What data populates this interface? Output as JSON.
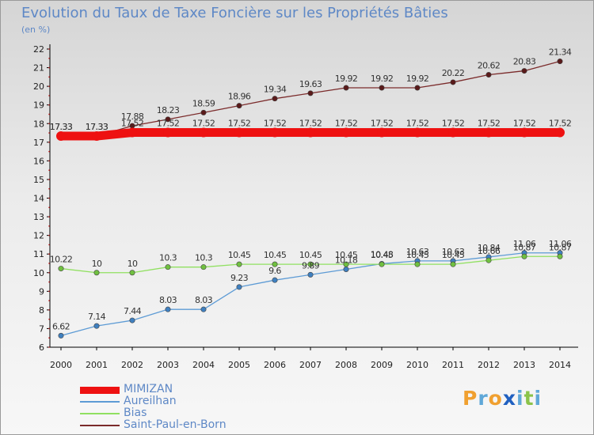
{
  "title": "Evolution du Taux de Taxe Foncière sur les Propriétés Bâties",
  "unit_label": "(en %)",
  "logo": {
    "letters": [
      "P",
      "r",
      "o",
      "x",
      "i",
      "t",
      "i"
    ],
    "colors": [
      "#f0a030",
      "#5fa8d8",
      "#f0a030",
      "#2060c0",
      "#5fa8d8",
      "#8bc34a",
      "#5fa8d8"
    ]
  },
  "chart_data": {
    "type": "line",
    "title": "Evolution du Taux de Taxe Foncière sur les Propriétés Bâties",
    "xlabel": "",
    "ylabel": "(en %)",
    "x": [
      "2000",
      "2001",
      "2002",
      "2003",
      "2004",
      "2005",
      "2006",
      "2007",
      "2008",
      "2009",
      "2010",
      "2011",
      "2012",
      "2013",
      "2014"
    ],
    "ylim": [
      6,
      22
    ],
    "yticks": [
      6,
      7,
      8,
      9,
      10,
      11,
      12,
      13,
      14,
      15,
      16,
      17,
      18,
      19,
      20,
      21,
      22
    ],
    "grid": false,
    "legend_position": "bottom-left",
    "series": [
      {
        "name": "Saint-Paul-en-Born",
        "color": "#7b2b2b",
        "marker": "#5a1a1a",
        "values": [
          17.33,
          17.33,
          17.88,
          18.23,
          18.59,
          18.96,
          19.34,
          19.63,
          19.92,
          19.92,
          19.92,
          20.22,
          20.62,
          20.83,
          21.34
        ],
        "labels": [
          "17.33",
          "17.33",
          "17.88",
          "18.23",
          "18.59",
          "18.96",
          "19.34",
          "19.63",
          "19.92",
          "19.92",
          "19.92",
          "20.22",
          "20.62",
          "20.83",
          "21.34"
        ]
      },
      {
        "name": "MIMIZAN",
        "color": "#ee1111",
        "marker": "#ee1111",
        "values": [
          17.33,
          17.33,
          17.52,
          17.52,
          17.52,
          17.52,
          17.52,
          17.52,
          17.52,
          17.52,
          17.52,
          17.52,
          17.52,
          17.52,
          17.52
        ],
        "labels": [
          "17.33",
          "17.33",
          "17.52",
          "17.52",
          "17.52",
          "17.52",
          "17.52",
          "17.52",
          "17.52",
          "17.52",
          "17.52",
          "17.52",
          "17.52",
          "17.52",
          "17.52"
        ]
      },
      {
        "name": "Aureilhan",
        "color": "#5d9bd5",
        "marker": "#3f80c0",
        "values": [
          6.62,
          7.14,
          7.44,
          8.03,
          8.03,
          9.23,
          9.6,
          9.89,
          10.18,
          10.48,
          10.63,
          10.63,
          10.84,
          11.06,
          11.06
        ],
        "labels": [
          "6.62",
          "7.14",
          "7.44",
          "8.03",
          "8.03",
          "9.23",
          "9.6",
          "9.89",
          "10.18",
          "10.48",
          "10.63",
          "10.63",
          "10.84",
          "11.06",
          "11.06"
        ]
      },
      {
        "name": "Bias",
        "color": "#90e060",
        "marker": "#70c040",
        "values": [
          10.22,
          10,
          10,
          10.3,
          10.3,
          10.45,
          10.45,
          10.45,
          10.45,
          10.45,
          10.45,
          10.45,
          10.66,
          10.87,
          10.87
        ],
        "labels": [
          "10.22",
          "10",
          "10",
          "10.3",
          "10.3",
          "10.45",
          "10.45",
          "10.45",
          "10.45",
          "10.45",
          "10.45",
          "10.45",
          "10.66",
          "10.87",
          "10.87"
        ]
      }
    ],
    "legend_order": [
      "MIMIZAN",
      "Aureilhan",
      "Bias",
      "Saint-Paul-en-Born"
    ]
  }
}
